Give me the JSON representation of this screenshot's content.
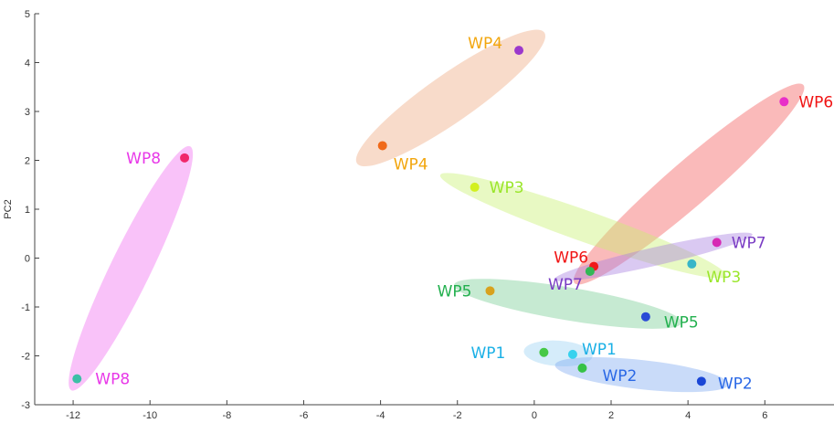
{
  "chart_data": {
    "type": "scatter",
    "ylabel": "PC2",
    "xlabel": "",
    "xlim": [
      -13,
      7.8
    ],
    "ylim": [
      -3,
      5
    ],
    "x_ticks": [
      "-12",
      "-10",
      "-8",
      "-6",
      "-4",
      "-2",
      "0",
      "2",
      "4",
      "6"
    ],
    "y_ticks": [
      "-3",
      "-2",
      "-1",
      "0",
      "1",
      "2",
      "3",
      "4",
      "5"
    ],
    "grid": false,
    "groups": [
      {
        "name": "WP8",
        "fill": "#f06ef0",
        "label_color": "#e838e8",
        "points": [
          {
            "x": -9.1,
            "y": 2.05,
            "color": "#f0286a",
            "label": "WP8"
          },
          {
            "x": -11.9,
            "y": -2.47,
            "color": "#3cbfa6",
            "label": "WP8"
          }
        ]
      },
      {
        "name": "WP4",
        "fill": "#efaa80",
        "label_color": "#f2a60e",
        "points": [
          {
            "x": -0.4,
            "y": 4.25,
            "color": "#9b38cc",
            "label": "WP4"
          },
          {
            "x": -3.95,
            "y": 2.3,
            "color": "#f06a1a",
            "label": "WP4"
          }
        ]
      },
      {
        "name": "WP6",
        "fill": "#f45a5a",
        "label_color": "#f01414",
        "points": [
          {
            "x": 6.5,
            "y": 3.2,
            "color": "#e82ec8",
            "label": "WP6"
          },
          {
            "x": 1.55,
            "y": -0.17,
            "color": "#f01a1a",
            "label": "WP6"
          }
        ]
      },
      {
        "name": "WP3",
        "fill": "#c8f070",
        "label_color": "#9ae62a",
        "points": [
          {
            "x": -1.55,
            "y": 1.45,
            "color": "#d2f01e",
            "label": "WP3"
          },
          {
            "x": 4.1,
            "y": -0.12,
            "color": "#38b6c8",
            "label": "WP3"
          }
        ]
      },
      {
        "name": "WP7",
        "fill": "#a77ee0",
        "label_color": "#7a3cc4",
        "points": [
          {
            "x": 4.75,
            "y": 0.32,
            "color": "#d62ab4",
            "label": "WP7"
          },
          {
            "x": 1.45,
            "y": -0.27,
            "color": "#32b856",
            "label": "WP7"
          }
        ]
      },
      {
        "name": "WP5",
        "fill": "#78cc94",
        "label_color": "#22b04e",
        "points": [
          {
            "x": -1.15,
            "y": -0.67,
            "color": "#d8a21e",
            "label": "WP5"
          },
          {
            "x": 2.9,
            "y": -1.2,
            "color": "#2a4ad6",
            "label": "WP5"
          }
        ]
      },
      {
        "name": "WP1",
        "fill": "#9ad2f2",
        "label_color": "#1ab0e6",
        "points": [
          {
            "x": 0.25,
            "y": -1.93,
            "color": "#46c846",
            "label": "WP1"
          },
          {
            "x": 1.0,
            "y": -1.97,
            "color": "#36d2ee",
            "label": "WP1"
          }
        ]
      },
      {
        "name": "WP2",
        "fill": "#7eaaf0",
        "label_color": "#2a68e6",
        "points": [
          {
            "x": 1.25,
            "y": -2.25,
            "color": "#36c246",
            "label": "WP2"
          },
          {
            "x": 4.35,
            "y": -2.52,
            "color": "#1a46d6",
            "label": "WP2"
          }
        ]
      }
    ]
  }
}
